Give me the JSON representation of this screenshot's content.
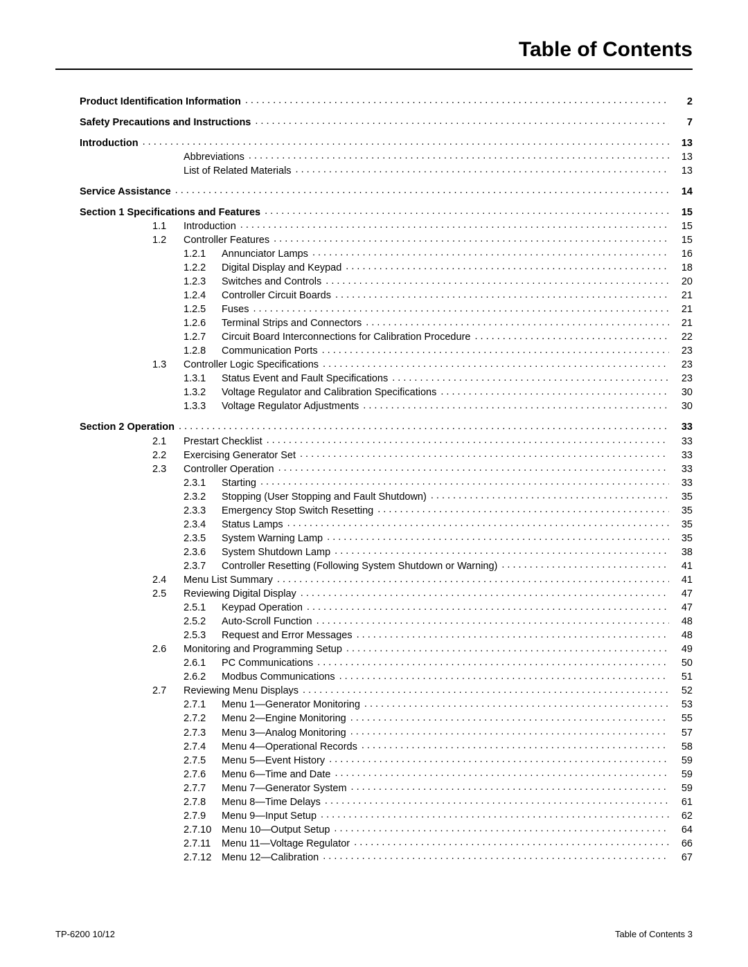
{
  "title": "Table of Contents",
  "footer_left": "TP-6200  10/12",
  "footer_right": "Table of Contents   3",
  "entries": [
    {
      "level": 0,
      "bold": true,
      "spaced": false,
      "num": "",
      "text": "Product Identification Information",
      "page": "2"
    },
    {
      "level": 0,
      "bold": true,
      "spaced": true,
      "num": "",
      "text": "Safety Precautions and Instructions",
      "page": "7"
    },
    {
      "level": 0,
      "bold": true,
      "spaced": true,
      "num": "",
      "text": "Introduction",
      "page": "13"
    },
    {
      "level": 1,
      "bold": false,
      "num": "",
      "text": "Abbreviations",
      "page": "13"
    },
    {
      "level": 1,
      "bold": false,
      "num": "",
      "text": "List of Related Materials",
      "page": "13"
    },
    {
      "level": 0,
      "bold": true,
      "spaced": true,
      "num": "",
      "text": "Service Assistance",
      "page": "14"
    },
    {
      "level": 0,
      "bold": true,
      "spaced": true,
      "num": "",
      "text": "Section 1  Specifications and Features",
      "page": "15"
    },
    {
      "level": 1,
      "bold": false,
      "num": "1.1",
      "text": "Introduction",
      "page": "15"
    },
    {
      "level": 1,
      "bold": false,
      "num": "1.2",
      "text": "Controller Features",
      "page": "15"
    },
    {
      "level": 2,
      "bold": false,
      "num": "1.2.1",
      "text": "Annunciator Lamps",
      "page": "16"
    },
    {
      "level": 2,
      "bold": false,
      "num": "1.2.2",
      "text": "Digital Display and Keypad",
      "page": "18"
    },
    {
      "level": 2,
      "bold": false,
      "num": "1.2.3",
      "text": "Switches and Controls",
      "page": "20"
    },
    {
      "level": 2,
      "bold": false,
      "num": "1.2.4",
      "text": "Controller Circuit Boards",
      "page": "21"
    },
    {
      "level": 2,
      "bold": false,
      "num": "1.2.5",
      "text": "Fuses",
      "page": "21"
    },
    {
      "level": 2,
      "bold": false,
      "num": "1.2.6",
      "text": "Terminal Strips and Connectors",
      "page": "21"
    },
    {
      "level": 2,
      "bold": false,
      "num": "1.2.7",
      "text": "Circuit Board Interconnections for Calibration Procedure",
      "page": "22"
    },
    {
      "level": 2,
      "bold": false,
      "num": "1.2.8",
      "text": "Communication Ports",
      "page": "23"
    },
    {
      "level": 1,
      "bold": false,
      "num": "1.3",
      "text": "Controller Logic Specifications",
      "page": "23"
    },
    {
      "level": 2,
      "bold": false,
      "num": "1.3.1",
      "text": "Status Event and Fault Specifications",
      "page": "23"
    },
    {
      "level": 2,
      "bold": false,
      "num": "1.3.2",
      "text": "Voltage Regulator and Calibration Specifications",
      "page": "30"
    },
    {
      "level": 2,
      "bold": false,
      "num": "1.3.3",
      "text": "Voltage Regulator Adjustments",
      "page": "30"
    },
    {
      "level": 0,
      "bold": true,
      "spaced": true,
      "num": "",
      "text": "Section 2  Operation",
      "page": "33"
    },
    {
      "level": 1,
      "bold": false,
      "num": "2.1",
      "text": "Prestart Checklist",
      "page": "33"
    },
    {
      "level": 1,
      "bold": false,
      "num": "2.2",
      "text": "Exercising Generator Set",
      "page": "33"
    },
    {
      "level": 1,
      "bold": false,
      "num": "2.3",
      "text": "Controller Operation",
      "page": "33"
    },
    {
      "level": 2,
      "bold": false,
      "num": "2.3.1",
      "text": "Starting",
      "page": "33"
    },
    {
      "level": 2,
      "bold": false,
      "num": "2.3.2",
      "text": "Stopping (User Stopping and Fault Shutdown)",
      "page": "35"
    },
    {
      "level": 2,
      "bold": false,
      "num": "2.3.3",
      "text": "Emergency Stop Switch Resetting",
      "page": "35"
    },
    {
      "level": 2,
      "bold": false,
      "num": "2.3.4",
      "text": "Status Lamps",
      "page": "35"
    },
    {
      "level": 2,
      "bold": false,
      "num": "2.3.5",
      "text": "System Warning Lamp",
      "page": "35"
    },
    {
      "level": 2,
      "bold": false,
      "num": "2.3.6",
      "text": "System Shutdown Lamp",
      "page": "38"
    },
    {
      "level": 2,
      "bold": false,
      "num": "2.3.7",
      "text": "Controller Resetting (Following System Shutdown or Warning)",
      "page": "41"
    },
    {
      "level": 1,
      "bold": false,
      "num": "2.4",
      "text": "Menu List Summary",
      "page": "41"
    },
    {
      "level": 1,
      "bold": false,
      "num": "2.5",
      "text": "Reviewing Digital Display",
      "page": "47"
    },
    {
      "level": 2,
      "bold": false,
      "num": "2.5.1",
      "text": "Keypad Operation",
      "page": "47"
    },
    {
      "level": 2,
      "bold": false,
      "num": "2.5.2",
      "text": "Auto-Scroll Function",
      "page": "48"
    },
    {
      "level": 2,
      "bold": false,
      "num": "2.5.3",
      "text": "Request and Error Messages",
      "page": "48"
    },
    {
      "level": 1,
      "bold": false,
      "num": "2.6",
      "text": "Monitoring and Programming Setup",
      "page": "49"
    },
    {
      "level": 2,
      "bold": false,
      "num": "2.6.1",
      "text": "PC Communications",
      "page": "50"
    },
    {
      "level": 2,
      "bold": false,
      "num": "2.6.2",
      "text": "Modbus Communications",
      "page": "51"
    },
    {
      "level": 1,
      "bold": false,
      "num": "2.7",
      "text": "Reviewing Menu Displays",
      "page": "52"
    },
    {
      "level": 2,
      "bold": false,
      "num": "2.7.1",
      "text": "Menu 1—Generator Monitoring",
      "page": "53"
    },
    {
      "level": 2,
      "bold": false,
      "num": "2.7.2",
      "text": "Menu 2—Engine Monitoring",
      "page": "55"
    },
    {
      "level": 2,
      "bold": false,
      "num": "2.7.3",
      "text": "Menu 3—Analog Monitoring",
      "page": "57"
    },
    {
      "level": 2,
      "bold": false,
      "num": "2.7.4",
      "text": "Menu 4—Operational Records",
      "page": "58"
    },
    {
      "level": 2,
      "bold": false,
      "num": "2.7.5",
      "text": "Menu 5—Event History",
      "page": "59"
    },
    {
      "level": 2,
      "bold": false,
      "num": "2.7.6",
      "text": "Menu 6—Time and Date",
      "page": "59"
    },
    {
      "level": 2,
      "bold": false,
      "num": "2.7.7",
      "text": "Menu 7—Generator System",
      "page": "59"
    },
    {
      "level": 2,
      "bold": false,
      "num": "2.7.8",
      "text": "Menu 8—Time Delays",
      "page": "61"
    },
    {
      "level": 2,
      "bold": false,
      "num": "2.7.9",
      "text": "Menu 9—Input Setup",
      "page": "62"
    },
    {
      "level": 2,
      "bold": false,
      "num": "2.7.10",
      "text": "Menu 10—Output Setup",
      "page": "64"
    },
    {
      "level": 2,
      "bold": false,
      "num": "2.7.11",
      "text": "Menu 11—Voltage Regulator",
      "page": "66"
    },
    {
      "level": 2,
      "bold": false,
      "num": "2.7.12",
      "text": "Menu 12—Calibration",
      "page": "67"
    }
  ]
}
